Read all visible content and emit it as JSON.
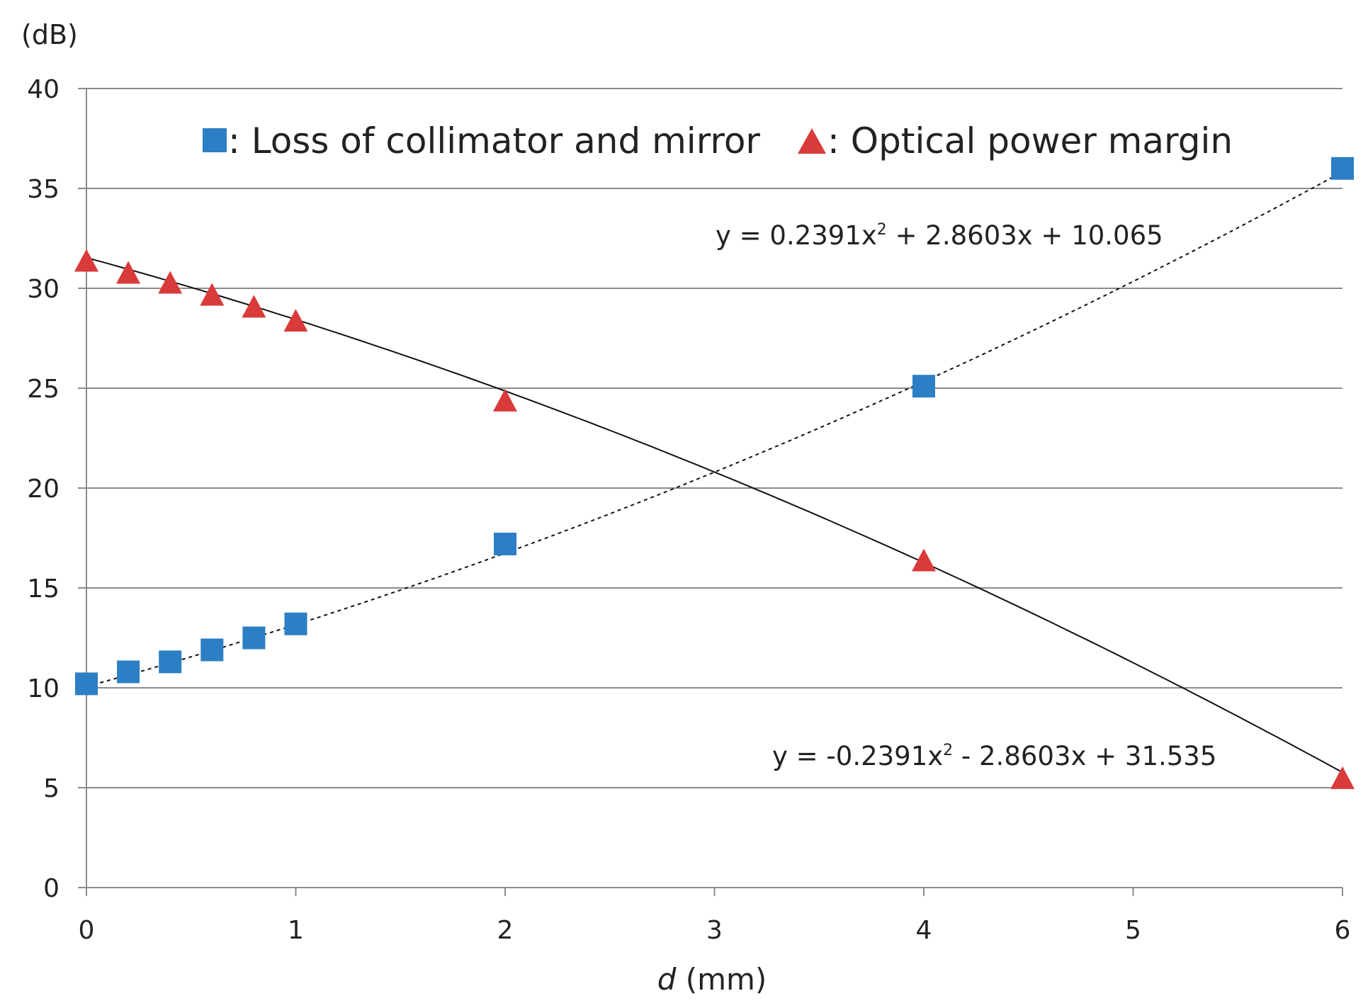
{
  "chart_data": {
    "type": "scatter",
    "ylabel_unit": "(dB)",
    "xlabel_var": "d",
    "xlabel_unit": " (mm)",
    "xlim": [
      0,
      6
    ],
    "ylim": [
      0,
      40
    ],
    "x_ticks": [
      "0",
      "1",
      "2",
      "3",
      "4",
      "5",
      "6"
    ],
    "y_ticks": [
      "0",
      "5",
      "10",
      "15",
      "20",
      "25",
      "30",
      "35",
      "40"
    ],
    "grid": "horizontal",
    "legend": [
      {
        "marker": "square",
        "color": "#2C7FC4",
        "text": ": Loss of collimator and mirror"
      },
      {
        "marker": "triangle",
        "color": "#D93A3A",
        "text": ": Optical power margin"
      }
    ],
    "series": [
      {
        "name": "Loss of collimator and mirror",
        "marker": "square",
        "color": "#2C7FC4",
        "x": [
          0,
          0.2,
          0.4,
          0.6,
          0.8,
          1,
          2,
          4,
          6
        ],
        "y": [
          10.2,
          10.8,
          11.3,
          11.9,
          12.5,
          13.2,
          17.2,
          25.1,
          36.0
        ],
        "trendline": {
          "type": "poly2",
          "style": "dotted",
          "coeffs": [
            0.2391,
            2.8603,
            10.065
          ],
          "equation": {
            "prefix": "y = 0.2391x",
            "sup": "2",
            "suffix": " + 2.8603x + 10.065"
          }
        }
      },
      {
        "name": "Optical power margin",
        "marker": "triangle",
        "color": "#D93A3A",
        "x": [
          0,
          0.2,
          0.4,
          0.6,
          0.8,
          1,
          2,
          4,
          6
        ],
        "y": [
          31.4,
          30.8,
          30.3,
          29.7,
          29.1,
          28.4,
          24.4,
          16.4,
          5.5
        ],
        "trendline": {
          "type": "poly2",
          "style": "solid",
          "coeffs": [
            -0.2391,
            -2.8603,
            31.535
          ],
          "equation": {
            "prefix": "y = -0.2391x",
            "sup": "2",
            "suffix": " - 2.8603x + 31.535"
          }
        }
      }
    ]
  }
}
